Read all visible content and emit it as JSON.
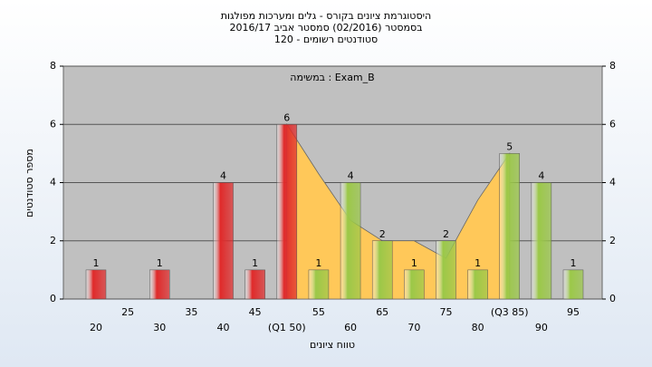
{
  "chart_data": {
    "type": "bar",
    "title": [
      "היסטוגרמת ציונים בקורס - גלים ומערכות מפולגות",
      "בסמסטר  (02/2016)  סמסטר אביב 2016/17",
      "סטודנטים רשומים - 120"
    ],
    "annotation": "במשימה : Exam_B",
    "y_label": "מספר סטודנטים",
    "x_label": "טווח ציונים",
    "categories": [
      "20",
      "25",
      "30",
      "35",
      "40",
      "45",
      "(Q1 50)",
      "55",
      "60",
      "65",
      "70",
      "75",
      "80",
      "(Q3 85)",
      "90",
      "95"
    ],
    "values": [
      1,
      null,
      1,
      null,
      4,
      1,
      6,
      1,
      4,
      2,
      1,
      2,
      1,
      5,
      4,
      1
    ],
    "colors": [
      "#e02a2a",
      null,
      "#e02a2a",
      null,
      "#e02a2a",
      "#e02a2a",
      "#e02a2a",
      "#9bc848",
      "#9bc848",
      "#9bc848",
      "#9bc848",
      "#9bc848",
      "#9bc848",
      "#9bc848",
      "#9bc848",
      "#9bc848"
    ],
    "area": {
      "color": "#ffc859",
      "values": [
        null,
        null,
        null,
        null,
        null,
        null,
        6,
        4.3,
        2.7,
        2,
        2,
        1.4,
        3.4,
        5,
        null,
        null
      ]
    },
    "ylim": [
      0,
      8
    ],
    "yticks": [
      0,
      2,
      4,
      6,
      8
    ],
    "grid": true
  }
}
